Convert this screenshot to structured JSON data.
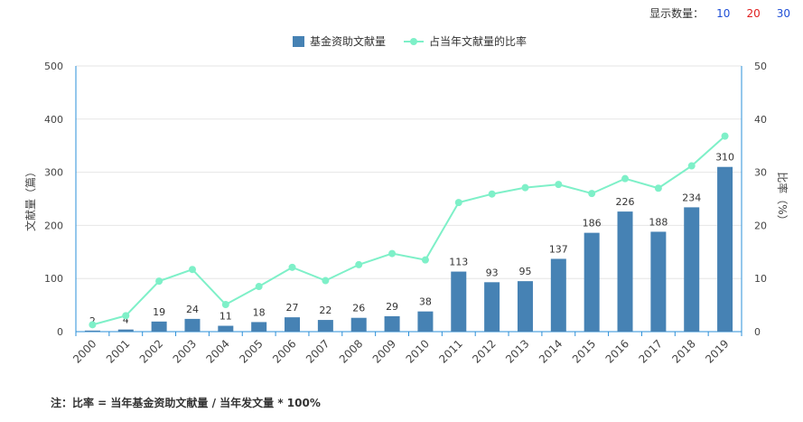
{
  "controls": {
    "label": "显示数量：",
    "options": [
      "10",
      "20",
      "30"
    ],
    "option_colors": [
      "#1f4fd6",
      "#e02020",
      "#1f4fd6"
    ]
  },
  "note": "注：比率 = 当年基金资助文献量 / 当年发文量 * 100%",
  "chart_data": {
    "type": "bar+line",
    "categories": [
      "2000",
      "2001",
      "2002",
      "2003",
      "2004",
      "2005",
      "2006",
      "2007",
      "2008",
      "2009",
      "2010",
      "2011",
      "2012",
      "2013",
      "2014",
      "2015",
      "2016",
      "2017",
      "2018",
      "2019"
    ],
    "series": [
      {
        "name": "基金资助文献量",
        "type": "bar",
        "axis": "left",
        "color": "#4682b4",
        "values": [
          2,
          4,
          19,
          24,
          11,
          18,
          27,
          22,
          26,
          29,
          38,
          113,
          93,
          95,
          137,
          186,
          226,
          188,
          234,
          310
        ]
      },
      {
        "name": "占当年文献量的比率",
        "type": "line",
        "axis": "right",
        "color": "#7ef0c8",
        "values": [
          1.3,
          3.0,
          9.5,
          11.7,
          5.1,
          8.5,
          12.1,
          9.6,
          12.6,
          14.7,
          13.5,
          24.3,
          25.9,
          27.1,
          27.7,
          26.0,
          28.8,
          27.0,
          31.2,
          36.8
        ]
      }
    ],
    "ylabel_left": "文献量（篇）",
    "ylabel_right": "比率（%）",
    "ylim_left": [
      0,
      500
    ],
    "ylim_right": [
      0,
      50
    ],
    "yticks_left": [
      0,
      100,
      200,
      300,
      400,
      500
    ],
    "yticks_right": [
      0,
      10,
      20,
      30,
      40,
      50
    ],
    "grid": true,
    "legend_position": "top-center"
  }
}
